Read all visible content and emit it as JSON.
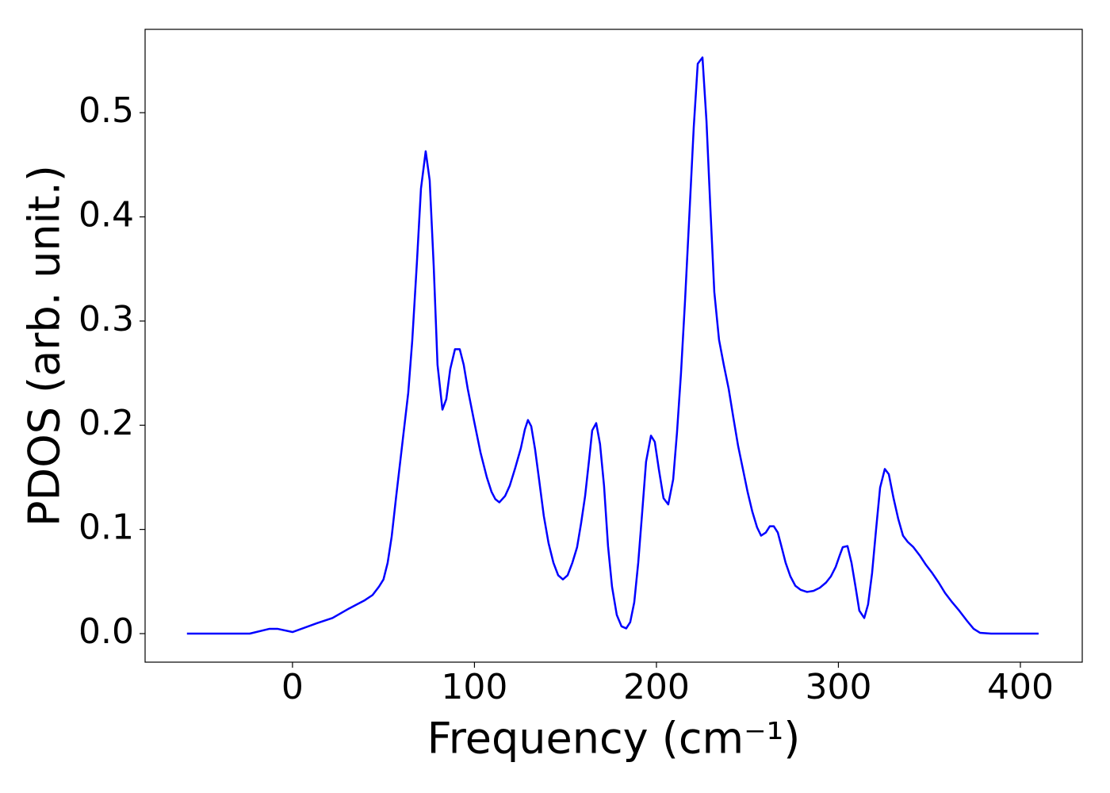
{
  "chart_data": {
    "type": "line",
    "x_label": "Frequency (cm⁻¹)",
    "y_label": "PDOS (arb. unit.)",
    "xlim": [
      -81,
      434
    ],
    "ylim": [
      -0.0274,
      0.58
    ],
    "xticks": [
      0,
      100,
      200,
      300,
      400
    ],
    "yticks": [
      {
        "value": 0,
        "label": "0.0"
      },
      0.1,
      0.2,
      0.3,
      0.4,
      0.5
    ],
    "grid": false,
    "series": [
      {
        "color": "#0000ff",
        "x": [
          -58,
          -23.5,
          -12.6,
          -8.3,
          0,
          13.5,
          22,
          31,
          39.7,
          44,
          47.5,
          50,
          52.3,
          54.5,
          57,
          60.6,
          63.6,
          65.8,
          68.4,
          70.6,
          73.2,
          75.4,
          77.6,
          79.7,
          82.4,
          84.5,
          86.7,
          89.3,
          91.9,
          94.1,
          96.3,
          99.8,
          103.3,
          106.8,
          109.4,
          111.5,
          113.7,
          116.8,
          119.4,
          122.4,
          125.5,
          127.7,
          129.4,
          131.2,
          133.3,
          135.5,
          138.1,
          140.7,
          143.4,
          146,
          148.6,
          151.2,
          153.8,
          156.4,
          158.6,
          160.8,
          163,
          164.7,
          166.9,
          169,
          171.2,
          173.4,
          175.6,
          178.2,
          180.8,
          183.4,
          185.6,
          187.8,
          190,
          192.2,
          194.3,
          197,
          199.1,
          201.3,
          203.9,
          206.5,
          209.2,
          211.3,
          213.5,
          215.7,
          217.9,
          220.5,
          222.7,
          225.3,
          227.5,
          229.6,
          231.8,
          234.4,
          237,
          239.7,
          242.3,
          244.9,
          247.5,
          250.1,
          252.7,
          255.3,
          257.5,
          260.1,
          262.3,
          264.5,
          266.7,
          268.8,
          271,
          273.6,
          276.3,
          279.3,
          282.8,
          286.3,
          289.8,
          293.2,
          295.9,
          298.5,
          300.7,
          302.4,
          305,
          307.2,
          309.4,
          311.5,
          314.2,
          316.3,
          318.5,
          320.7,
          322.9,
          325.5,
          327.7,
          330.3,
          332.9,
          335.5,
          338.1,
          341.2,
          344.7,
          348.1,
          351.6,
          355.1,
          358.6,
          362.1,
          366.4,
          370.8,
          374.3,
          377.8,
          383.9,
          410
        ],
        "values": [
          0,
          0,
          0.0046,
          0.0046,
          0.0015,
          0.01,
          0.015,
          0.024,
          0.032,
          0.037,
          0.045,
          0.052,
          0.068,
          0.093,
          0.132,
          0.186,
          0.231,
          0.281,
          0.357,
          0.427,
          0.463,
          0.435,
          0.353,
          0.258,
          0.215,
          0.225,
          0.254,
          0.273,
          0.273,
          0.258,
          0.235,
          0.204,
          0.174,
          0.15,
          0.136,
          0.129,
          0.126,
          0.132,
          0.142,
          0.159,
          0.178,
          0.196,
          0.205,
          0.199,
          0.177,
          0.148,
          0.113,
          0.087,
          0.068,
          0.056,
          0.052,
          0.056,
          0.068,
          0.083,
          0.106,
          0.132,
          0.167,
          0.195,
          0.202,
          0.182,
          0.142,
          0.084,
          0.045,
          0.018,
          0.007,
          0.005,
          0.011,
          0.03,
          0.068,
          0.117,
          0.165,
          0.19,
          0.184,
          0.158,
          0.13,
          0.124,
          0.148,
          0.193,
          0.25,
          0.319,
          0.395,
          0.486,
          0.547,
          0.553,
          0.492,
          0.41,
          0.328,
          0.282,
          0.258,
          0.235,
          0.207,
          0.18,
          0.158,
          0.136,
          0.117,
          0.102,
          0.094,
          0.097,
          0.103,
          0.103,
          0.097,
          0.083,
          0.068,
          0.055,
          0.046,
          0.042,
          0.04,
          0.041,
          0.044,
          0.049,
          0.055,
          0.064,
          0.075,
          0.083,
          0.084,
          0.068,
          0.045,
          0.022,
          0.015,
          0.028,
          0.058,
          0.1,
          0.14,
          0.158,
          0.153,
          0.13,
          0.11,
          0.094,
          0.088,
          0.083,
          0.075,
          0.066,
          0.058,
          0.049,
          0.039,
          0.031,
          0.022,
          0.012,
          0.0046,
          0.0008,
          0,
          0
        ]
      }
    ]
  }
}
